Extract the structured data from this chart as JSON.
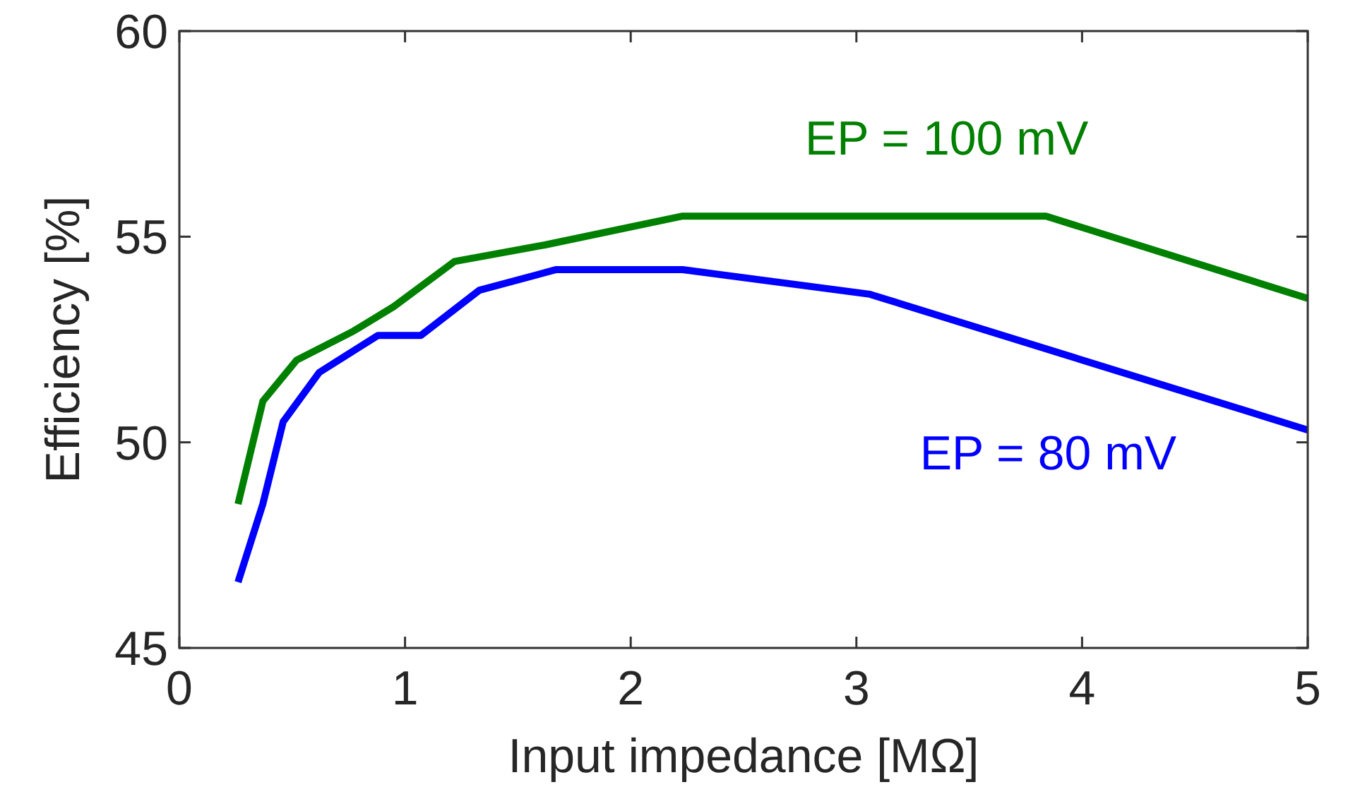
{
  "chart_data": {
    "type": "line",
    "xlabel": "Input impedance [MΩ]",
    "ylabel": "Efficiency [%]",
    "xlim": [
      0,
      5
    ],
    "xticks": [
      0,
      1,
      2,
      3,
      4,
      5
    ],
    "ylim": [
      45,
      60
    ],
    "yticks": [
      45,
      50,
      55,
      60
    ],
    "grid": false,
    "marker": "none",
    "line_style": "solid",
    "series": [
      {
        "name": "EP = 100 mV",
        "color": "#008000",
        "x": [
          0.26,
          0.37,
          0.52,
          0.77,
          0.95,
          1.22,
          1.62,
          2.23,
          3.84,
          5.0
        ],
        "values": [
          48.5,
          51.0,
          52.0,
          52.7,
          53.3,
          54.4,
          54.8,
          55.5,
          55.5,
          53.5
        ]
      },
      {
        "name": "EP = 80 mV",
        "color": "#0000ff",
        "x": [
          0.26,
          0.37,
          0.46,
          0.62,
          0.88,
          1.07,
          1.33,
          1.67,
          2.23,
          3.06,
          5.0
        ],
        "values": [
          46.6,
          48.5,
          50.5,
          51.7,
          52.6,
          52.6,
          53.7,
          54.2,
          54.2,
          53.6,
          50.3
        ]
      }
    ]
  }
}
